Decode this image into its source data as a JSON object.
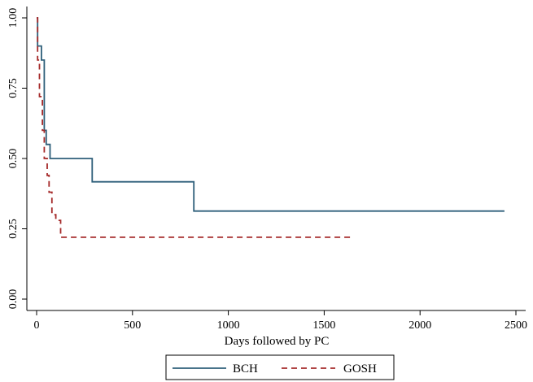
{
  "chart_data": {
    "type": "line",
    "step": true,
    "title": "",
    "xlabel": "Days followed by PC",
    "ylabel": "",
    "xlim": [
      0,
      2500
    ],
    "ylim": [
      0,
      1
    ],
    "x_ticks": [
      0,
      500,
      1000,
      1500,
      2000,
      2500
    ],
    "y_ticks": [
      0,
      0.25,
      0.5,
      0.75,
      1
    ],
    "x_tick_labels": [
      "0",
      "500",
      "1000",
      "1500",
      "2000",
      "2500"
    ],
    "y_tick_labels": [
      "0.00",
      "0.25",
      "0.50",
      "0.75",
      "1.00"
    ],
    "grid": false,
    "legend_position": "bottom",
    "series": [
      {
        "name": "BCH",
        "color": "#2e5f7a",
        "style": "solid",
        "points": [
          [
            0,
            1.0
          ],
          [
            5,
            0.9
          ],
          [
            25,
            0.85
          ],
          [
            40,
            0.6
          ],
          [
            50,
            0.55
          ],
          [
            70,
            0.5
          ],
          [
            290,
            0.417
          ],
          [
            820,
            0.313
          ],
          [
            2440,
            0.313
          ]
        ]
      },
      {
        "name": "GOSH",
        "color": "#a52a2a",
        "style": "dashed",
        "points": [
          [
            0,
            1.0
          ],
          [
            5,
            0.85
          ],
          [
            15,
            0.72
          ],
          [
            30,
            0.6
          ],
          [
            40,
            0.5
          ],
          [
            55,
            0.44
          ],
          [
            65,
            0.38
          ],
          [
            80,
            0.3
          ],
          [
            100,
            0.28
          ],
          [
            125,
            0.22
          ],
          [
            1640,
            0.22
          ]
        ]
      }
    ]
  }
}
